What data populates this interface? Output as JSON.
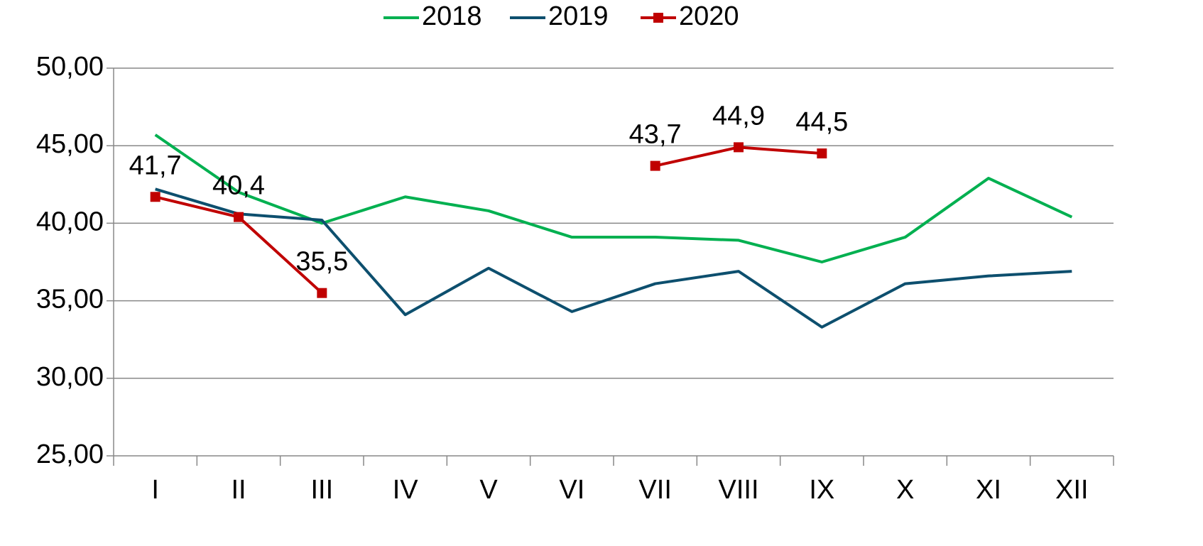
{
  "chart_data": {
    "type": "line",
    "categories": [
      "I",
      "II",
      "III",
      "IV",
      "V",
      "VI",
      "VII",
      "VIII",
      "IX",
      "X",
      "XI",
      "XII"
    ],
    "series": [
      {
        "name": "2018",
        "color": "#00b050",
        "values": [
          45.7,
          42.0,
          40.0,
          41.7,
          40.8,
          39.1,
          39.1,
          38.9,
          37.5,
          39.1,
          42.9,
          40.4
        ]
      },
      {
        "name": "2019",
        "color": "#0d4f6e",
        "values": [
          42.2,
          40.6,
          40.2,
          34.1,
          37.1,
          34.3,
          36.1,
          36.9,
          33.3,
          36.1,
          36.6,
          36.9
        ]
      },
      {
        "name": "2020",
        "color": "#c00000",
        "marker": "square",
        "values": [
          41.7,
          40.4,
          35.5,
          null,
          null,
          null,
          43.7,
          44.9,
          44.5,
          null,
          null,
          null
        ],
        "value_labels": [
          "41,7",
          "40,4",
          "35,5",
          null,
          null,
          null,
          "43,7",
          "44,9",
          "44,5",
          null,
          null,
          null
        ]
      }
    ],
    "ylim": [
      25,
      50
    ],
    "yticks": [
      {
        "value": 25,
        "label": "25,00"
      },
      {
        "value": 30,
        "label": "30,00"
      },
      {
        "value": 35,
        "label": "35,00"
      },
      {
        "value": 40,
        "label": "40,00"
      },
      {
        "value": 45,
        "label": "45,00"
      },
      {
        "value": 50,
        "label": "50,00"
      }
    ],
    "grid": true,
    "legend": "top"
  }
}
